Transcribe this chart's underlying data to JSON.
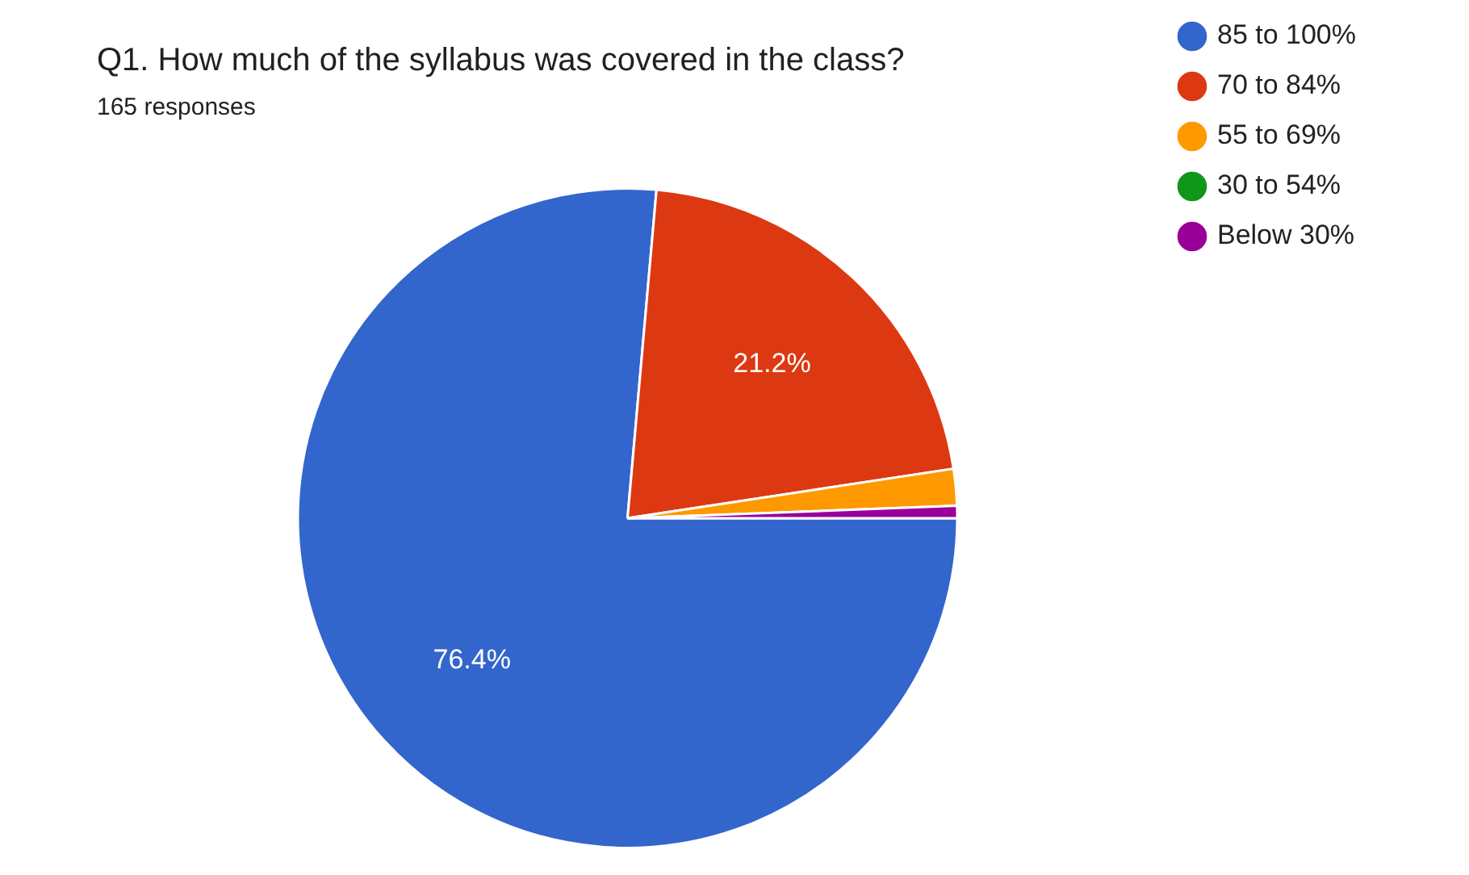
{
  "chart_data": {
    "type": "pie",
    "title": "Q1. How much of the syllabus was covered in the class?",
    "subtitle": "165 responses",
    "categories": [
      "85 to 100%",
      "70 to 84%",
      "55 to 69%",
      "30 to 54%",
      "Below 30%"
    ],
    "values": [
      76.4,
      21.2,
      1.8,
      0,
      0.6
    ],
    "colors": [
      "#3366cc",
      "#dc3912",
      "#ff9900",
      "#109618",
      "#990099"
    ],
    "value_labels": [
      "76.4%",
      "21.2%",
      null,
      null,
      null
    ],
    "legend": "right"
  }
}
